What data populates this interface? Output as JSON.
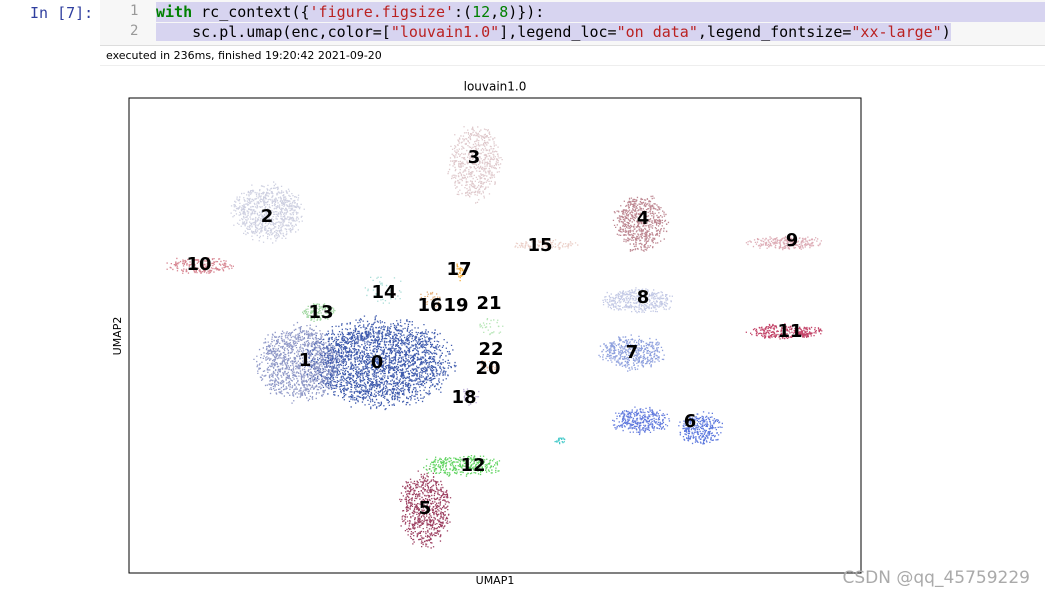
{
  "cell": {
    "prompt": "In [7]:",
    "line_numbers": [
      "1",
      "2"
    ],
    "lines": [
      [
        "with",
        " rc_context({",
        "'figure.figsize'",
        ":(",
        "12",
        ",",
        "8",
        ")}):"
      ],
      [
        "    sc.pl.umap(enc,color=[",
        "\"louvain1.0\"",
        "],legend_loc=",
        "\"on data\"",
        ",legend_fontsize=",
        "\"xx-large\"",
        ")"
      ]
    ],
    "status": "executed in 236ms, finished 19:20:42 2021-09-20"
  },
  "plot": {
    "title": "louvain1.0",
    "x_label": "UMAP1",
    "y_label": "UMAP2",
    "cluster_labels": [
      "0",
      "1",
      "2",
      "3",
      "4",
      "5",
      "6",
      "7",
      "8",
      "9",
      "10",
      "11",
      "12",
      "13",
      "14",
      "15",
      "16",
      "17",
      "18",
      "19",
      "20",
      "21",
      "22"
    ]
  },
  "watermark": "CSDN @qq_45759229"
}
